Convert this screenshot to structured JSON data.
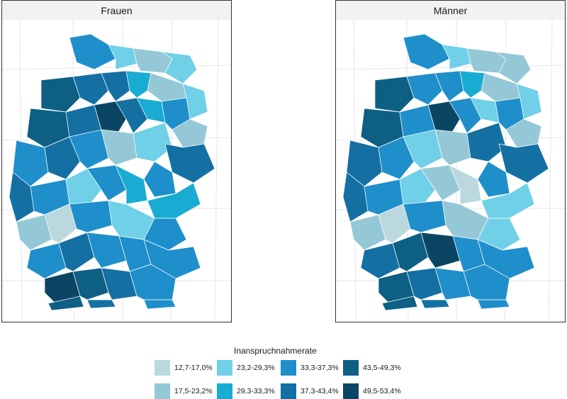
{
  "panels": [
    {
      "title": "Frauen"
    },
    {
      "title": "Männer"
    }
  ],
  "legend": {
    "title": "Inanspruchnahmerate",
    "items": [
      {
        "label": "12,7-17,0%",
        "color": "#bcd8df"
      },
      {
        "label": "17,5-23,2%",
        "color": "#94c8d6"
      },
      {
        "label": "23,2-29,3%",
        "color": "#6fd0e8"
      },
      {
        "label": "29,3-33,3%",
        "color": "#19acd2"
      },
      {
        "label": "33,3-37,3%",
        "color": "#1f8fcb"
      },
      {
        "label": "37,3-43,4%",
        "color": "#1470a3"
      },
      {
        "label": "43,5-49,3%",
        "color": "#0d5f84"
      },
      {
        "label": "49,5-53,4%",
        "color": "#0a4663"
      }
    ]
  },
  "colors": {
    "panel_strip": "#f2f2f2",
    "panel_border": "#333333",
    "grid": "#e6e6e6",
    "region_border": "#ffffff"
  }
}
